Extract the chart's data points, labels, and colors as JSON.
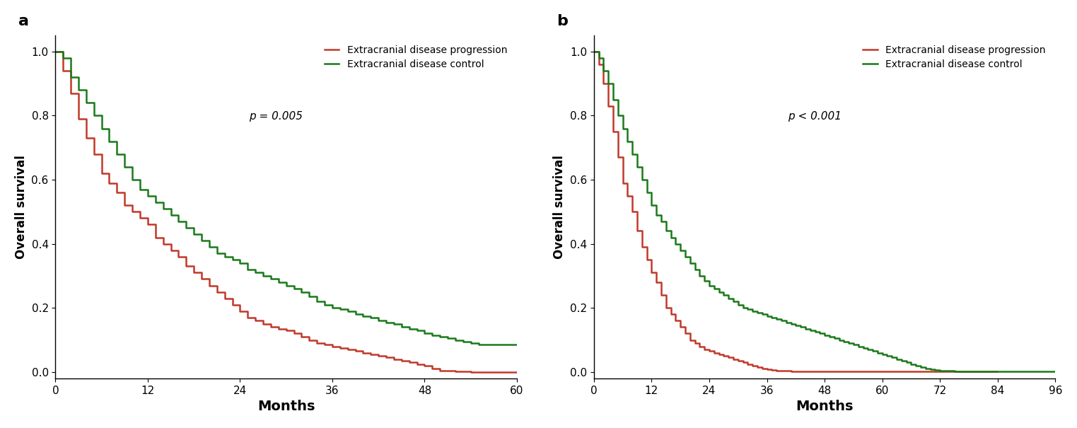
{
  "panel_a": {
    "label": "a",
    "pvalue": "p = 0.005",
    "xlim": [
      0,
      60
    ],
    "xticks": [
      0,
      12,
      24,
      36,
      48,
      60
    ],
    "ylim": [
      -0.02,
      1.05
    ],
    "yticks": [
      0.0,
      0.2,
      0.4,
      0.6,
      0.8,
      1.0
    ],
    "xlabel": "Months",
    "ylabel": "Overall survival",
    "progression_color": "#c0392b",
    "control_color": "#1a7a1a",
    "progression_times": [
      0,
      1,
      2,
      3,
      4,
      5,
      6,
      7,
      8,
      9,
      10,
      11,
      12,
      13,
      14,
      15,
      16,
      17,
      18,
      19,
      20,
      21,
      22,
      23,
      24,
      25,
      26,
      27,
      28,
      29,
      30,
      31,
      32,
      33,
      34,
      35,
      36,
      37,
      38,
      39,
      40,
      41,
      42,
      43,
      44,
      45,
      46,
      47,
      48,
      49,
      50,
      51,
      52,
      53,
      54,
      55,
      56,
      57,
      58,
      59,
      60
    ],
    "progression_survival": [
      1.0,
      0.94,
      0.87,
      0.79,
      0.73,
      0.68,
      0.62,
      0.59,
      0.56,
      0.52,
      0.5,
      0.48,
      0.46,
      0.42,
      0.4,
      0.38,
      0.36,
      0.33,
      0.31,
      0.29,
      0.27,
      0.25,
      0.23,
      0.21,
      0.19,
      0.17,
      0.16,
      0.15,
      0.14,
      0.135,
      0.13,
      0.12,
      0.11,
      0.1,
      0.09,
      0.085,
      0.08,
      0.075,
      0.07,
      0.065,
      0.06,
      0.055,
      0.05,
      0.045,
      0.04,
      0.035,
      0.03,
      0.025,
      0.02,
      0.01,
      0.005,
      0.003,
      0.002,
      0.001,
      0.0,
      0.0,
      0.0,
      0.0,
      0.0,
      0.0,
      0.0
    ],
    "control_times": [
      0,
      1,
      2,
      3,
      4,
      5,
      6,
      7,
      8,
      9,
      10,
      11,
      12,
      13,
      14,
      15,
      16,
      17,
      18,
      19,
      20,
      21,
      22,
      23,
      24,
      25,
      26,
      27,
      28,
      29,
      30,
      31,
      32,
      33,
      34,
      35,
      36,
      37,
      38,
      39,
      40,
      41,
      42,
      43,
      44,
      45,
      46,
      47,
      48,
      49,
      50,
      51,
      52,
      53,
      54,
      55,
      56,
      57,
      58,
      59,
      60
    ],
    "control_survival": [
      1.0,
      0.98,
      0.92,
      0.88,
      0.84,
      0.8,
      0.76,
      0.72,
      0.68,
      0.64,
      0.6,
      0.57,
      0.55,
      0.53,
      0.51,
      0.49,
      0.47,
      0.45,
      0.43,
      0.41,
      0.39,
      0.37,
      0.36,
      0.35,
      0.34,
      0.32,
      0.31,
      0.3,
      0.29,
      0.28,
      0.27,
      0.26,
      0.25,
      0.235,
      0.22,
      0.21,
      0.2,
      0.195,
      0.19,
      0.18,
      0.175,
      0.17,
      0.16,
      0.155,
      0.15,
      0.14,
      0.135,
      0.13,
      0.12,
      0.115,
      0.11,
      0.105,
      0.1,
      0.095,
      0.09,
      0.085,
      0.085,
      0.085,
      0.085,
      0.085,
      0.085
    ]
  },
  "panel_b": {
    "label": "b",
    "pvalue": "p < 0.001",
    "xlim": [
      0,
      96
    ],
    "xticks": [
      0,
      12,
      24,
      36,
      48,
      60,
      72,
      84,
      96
    ],
    "ylim": [
      -0.02,
      1.05
    ],
    "yticks": [
      0.0,
      0.2,
      0.4,
      0.6,
      0.8,
      1.0
    ],
    "xlabel": "Months",
    "ylabel": "Overall survival",
    "progression_color": "#c0392b",
    "control_color": "#1a7a1a",
    "progression_times": [
      0,
      1,
      2,
      3,
      4,
      5,
      6,
      7,
      8,
      9,
      10,
      11,
      12,
      13,
      14,
      15,
      16,
      17,
      18,
      19,
      20,
      21,
      22,
      23,
      24,
      25,
      26,
      27,
      28,
      29,
      30,
      31,
      32,
      33,
      34,
      35,
      36,
      37,
      38,
      39,
      40,
      41,
      42,
      43,
      44,
      45,
      46,
      47,
      48,
      49,
      50,
      51,
      52,
      53,
      54,
      55,
      56,
      57,
      58,
      59,
      60,
      61,
      62,
      63,
      64,
      65,
      66,
      67,
      68,
      69,
      70,
      71,
      72,
      73,
      74,
      75,
      76,
      77,
      78,
      79,
      80,
      81,
      82,
      83,
      84
    ],
    "progression_survival": [
      1.0,
      0.96,
      0.9,
      0.83,
      0.75,
      0.67,
      0.59,
      0.55,
      0.5,
      0.44,
      0.39,
      0.35,
      0.31,
      0.28,
      0.24,
      0.2,
      0.18,
      0.16,
      0.14,
      0.12,
      0.1,
      0.09,
      0.08,
      0.07,
      0.065,
      0.06,
      0.055,
      0.05,
      0.045,
      0.04,
      0.035,
      0.03,
      0.025,
      0.02,
      0.015,
      0.01,
      0.008,
      0.006,
      0.005,
      0.004,
      0.003,
      0.002,
      0.001,
      0.001,
      0.001,
      0.001,
      0.001,
      0.001,
      0.001,
      0.001,
      0.001,
      0.001,
      0.001,
      0.001,
      0.001,
      0.001,
      0.001,
      0.001,
      0.001,
      0.001,
      0.001,
      0.001,
      0.001,
      0.001,
      0.001,
      0.001,
      0.001,
      0.001,
      0.001,
      0.001,
      0.001,
      0.001,
      0.001,
      0.001,
      0.001,
      0.001,
      0.001,
      0.001,
      0.001,
      0.001,
      0.001,
      0.001,
      0.001,
      0.001,
      0.001
    ],
    "control_times": [
      0,
      1,
      2,
      3,
      4,
      5,
      6,
      7,
      8,
      9,
      10,
      11,
      12,
      13,
      14,
      15,
      16,
      17,
      18,
      19,
      20,
      21,
      22,
      23,
      24,
      25,
      26,
      27,
      28,
      29,
      30,
      31,
      32,
      33,
      34,
      35,
      36,
      37,
      38,
      39,
      40,
      41,
      42,
      43,
      44,
      45,
      46,
      47,
      48,
      49,
      50,
      51,
      52,
      53,
      54,
      55,
      56,
      57,
      58,
      59,
      60,
      61,
      62,
      63,
      64,
      65,
      66,
      67,
      68,
      69,
      70,
      71,
      72,
      73,
      74,
      75,
      76,
      77,
      78,
      79,
      80,
      81,
      82,
      83,
      84,
      85,
      86,
      87,
      88,
      89,
      90,
      91,
      92,
      93,
      94,
      95,
      96
    ],
    "control_survival": [
      1.0,
      0.98,
      0.94,
      0.9,
      0.85,
      0.8,
      0.76,
      0.72,
      0.68,
      0.64,
      0.6,
      0.56,
      0.52,
      0.49,
      0.47,
      0.44,
      0.42,
      0.4,
      0.38,
      0.36,
      0.34,
      0.32,
      0.3,
      0.285,
      0.27,
      0.26,
      0.25,
      0.24,
      0.23,
      0.22,
      0.21,
      0.2,
      0.195,
      0.19,
      0.185,
      0.18,
      0.175,
      0.17,
      0.165,
      0.16,
      0.155,
      0.15,
      0.145,
      0.14,
      0.135,
      0.13,
      0.125,
      0.12,
      0.115,
      0.11,
      0.105,
      0.1,
      0.095,
      0.09,
      0.085,
      0.08,
      0.075,
      0.07,
      0.065,
      0.06,
      0.055,
      0.05,
      0.045,
      0.04,
      0.035,
      0.03,
      0.025,
      0.02,
      0.015,
      0.01,
      0.008,
      0.006,
      0.005,
      0.004,
      0.003,
      0.002,
      0.001,
      0.001,
      0.001,
      0.001,
      0.001,
      0.001,
      0.001,
      0.001,
      0.001,
      0.001,
      0.001,
      0.001,
      0.001,
      0.001,
      0.001,
      0.001,
      0.001,
      0.001,
      0.001,
      0.001,
      0.001
    ]
  },
  "legend_labels": [
    "Extracranial disease progression",
    "Extracranial disease control"
  ],
  "legend_colors": [
    "#c0392b",
    "#1a7a1a"
  ],
  "background_color": "#ffffff",
  "linewidth": 1.8
}
